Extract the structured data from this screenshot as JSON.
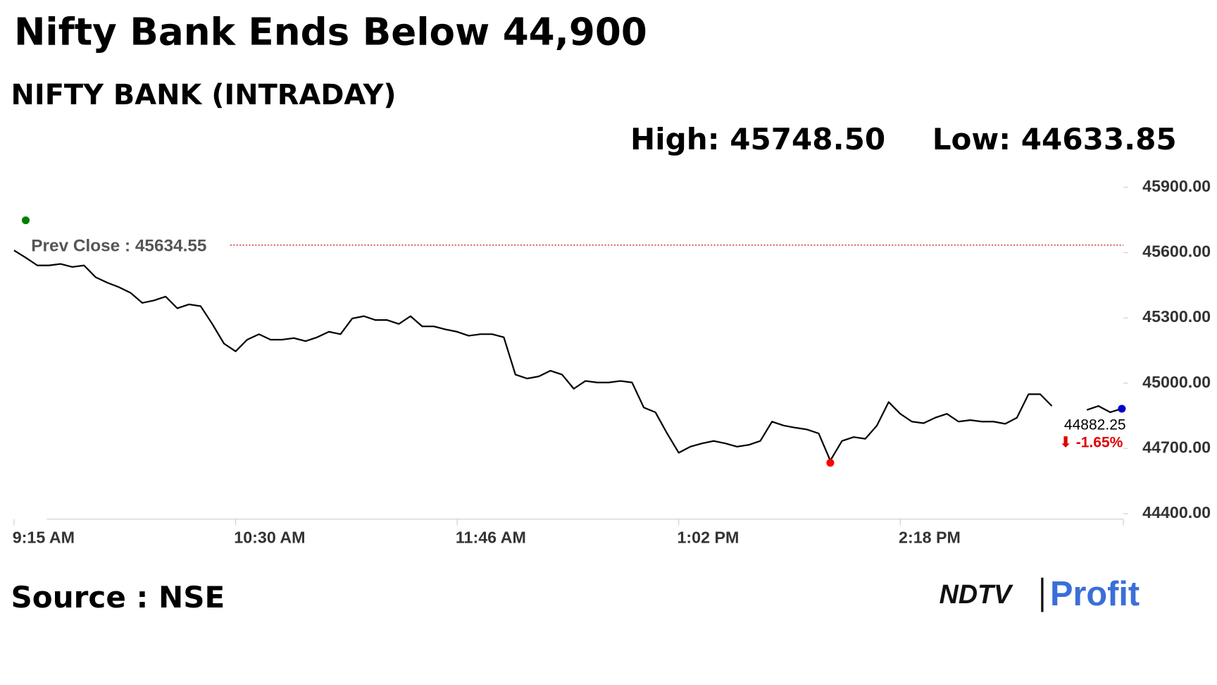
{
  "chart_data": {
    "type": "line",
    "title": "Nifty Bank Ends Below 44,900",
    "subtitle": "NIFTY BANK (INTRADAY)",
    "high_label": "High: 45748.50",
    "low_label": "Low: 44633.85",
    "high": 45748.5,
    "low": 44633.85,
    "reference_line": {
      "value": 45634.55,
      "label": "Prev Close : 45634.55",
      "color": "#c00000"
    },
    "last_label": "44882.25",
    "change_label": "⬇ -1.65%",
    "source": "Source : NSE",
    "logo": {
      "left": "NDTV",
      "right": "Profit"
    },
    "categories": [
      "9:15 AM",
      null,
      null,
      null,
      null,
      null,
      null,
      null,
      null,
      null,
      null,
      null,
      null,
      null,
      null,
      null,
      null,
      null,
      null,
      "10:30 AM",
      null,
      null,
      null,
      null,
      null,
      null,
      null,
      null,
      null,
      null,
      null,
      null,
      null,
      null,
      null,
      null,
      null,
      null,
      "11:46 AM",
      null,
      null,
      null,
      null,
      null,
      null,
      null,
      null,
      null,
      null,
      null,
      null,
      null,
      null,
      null,
      null,
      null,
      null,
      "1:02 PM",
      null,
      null,
      null,
      null,
      null,
      null,
      null,
      null,
      null,
      null,
      null,
      null,
      null,
      null,
      null,
      null,
      null,
      null,
      "2:18 PM",
      null,
      null,
      null,
      null,
      null,
      null,
      null,
      null,
      null,
      null,
      null,
      null,
      null,
      null,
      null,
      null,
      null,
      null,
      null
    ],
    "series": [
      {
        "name": "NIFTY BANK",
        "color": "#000000",
        "values": [
          45610,
          45577,
          45541,
          45541,
          45548,
          45534,
          45541,
          45487,
          45462,
          45441,
          45415,
          45369,
          45380,
          45398,
          45344,
          45362,
          45354,
          45272,
          45182,
          45146,
          45200,
          45225,
          45200,
          45200,
          45207,
          45193,
          45211,
          45236,
          45225,
          45297,
          45308,
          45290,
          45290,
          45272,
          45308,
          45261,
          45261,
          45247,
          45236,
          45218,
          45225,
          45225,
          45211,
          45039,
          45021,
          45031,
          45057,
          45039,
          44974,
          45010,
          45003,
          45003,
          45010,
          45003,
          44888,
          44866,
          44769,
          44680,
          44708,
          44723,
          44734,
          44723,
          44708,
          44716,
          44734,
          44823,
          44805,
          44795,
          44787,
          44769,
          44644,
          44734,
          44752,
          44744,
          44805,
          44913,
          44859,
          44823,
          44816,
          44841,
          44859,
          44823,
          44830,
          44823,
          44823,
          44813,
          44841,
          44949,
          44949,
          44895,
          null,
          null,
          44877,
          44895,
          44866,
          44882.25
        ]
      }
    ],
    "ylim": [
      44400,
      45900
    ],
    "yticks": [
      {
        "value": 44400,
        "label": "44400.00"
      },
      {
        "value": 44700,
        "label": "44700.00"
      },
      {
        "value": 45000,
        "label": "45000.00"
      },
      {
        "value": 45300,
        "label": "45300.00"
      },
      {
        "value": 45600,
        "label": "45600.00"
      },
      {
        "value": 45900,
        "label": "45900.00"
      }
    ],
    "marker_colors": {
      "high": "#008000",
      "low": "#ff0000",
      "last": "#0000cc"
    }
  }
}
